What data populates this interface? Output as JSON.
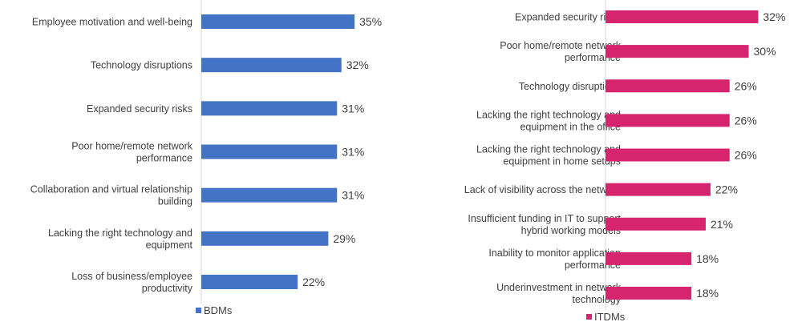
{
  "chart_data": [
    {
      "type": "bar",
      "orientation": "horizontal",
      "categories": [
        [
          "Employee motivation and well-being"
        ],
        [
          "Technology disruptions"
        ],
        [
          "Expanded security risks"
        ],
        [
          "Poor home/remote network",
          "performance"
        ],
        [
          "Collaboration and virtual relationship",
          "building"
        ],
        [
          "Lacking the right technology and",
          "equipment"
        ],
        [
          "Loss of business/employee",
          "productivity"
        ]
      ],
      "series": [
        {
          "name": "BDMs",
          "values": [
            35,
            32,
            31,
            31,
            31,
            29,
            22
          ]
        }
      ],
      "value_labels": [
        "35%",
        "32%",
        "31%",
        "31%",
        "31%",
        "29%",
        "22%"
      ],
      "legend": "bottom-left",
      "color": "#4472C4"
    },
    {
      "type": "bar",
      "orientation": "horizontal",
      "categories": [
        [
          "Expanded security risks"
        ],
        [
          "Poor home/remote network",
          "performance"
        ],
        [
          "Technology disruptions"
        ],
        [
          "Lacking the right technology and",
          "equipment in the office"
        ],
        [
          "Lacking the right technology and",
          "equipment in home setups"
        ],
        [
          "Lack of visibility across the network"
        ],
        [
          "Insufficient funding in IT to support",
          "hybrid working models"
        ],
        [
          "Inability to monitor application",
          "performance"
        ],
        [
          "Underinvestment in network",
          "technology"
        ]
      ],
      "series": [
        {
          "name": "ITDMs",
          "values": [
            32,
            30,
            26,
            26,
            26,
            22,
            21,
            18,
            18
          ]
        }
      ],
      "value_labels": [
        "32%",
        "30%",
        "26%",
        "26%",
        "26%",
        "22%",
        "21%",
        "18%",
        "18%"
      ],
      "legend": "bottom-left",
      "color": "#D6246E"
    }
  ]
}
